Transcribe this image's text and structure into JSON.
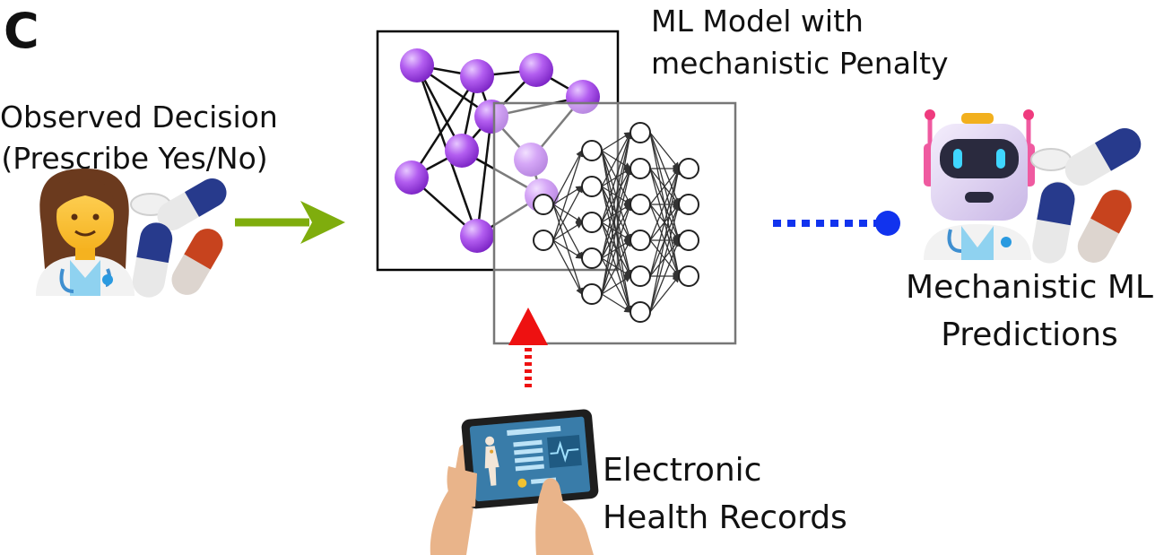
{
  "panel_letter": "C",
  "observed": {
    "line1": "Observed Decision",
    "line2": "(Prescribe Yes/No)"
  },
  "model": {
    "line1": "ML Model with",
    "line2": "mechanistic Penalty"
  },
  "predictions": {
    "line1": "Mechanistic ML",
    "line2": "Predictions"
  },
  "ehr": {
    "line1": "Electronic",
    "line2": "Health Records"
  },
  "colors": {
    "purple_node": "#a24be0",
    "light_purple_node": "#e0c2f5",
    "green_arrow": "#7fad0d",
    "red_arrow": "#ee1111",
    "blue_dotted": "#1133ee",
    "box_black": "#000000",
    "box_gray": "#777777"
  },
  "icons": [
    "doctor-icon",
    "pills-icon",
    "robot-doctor-icon",
    "tablet-ehr-icon"
  ]
}
